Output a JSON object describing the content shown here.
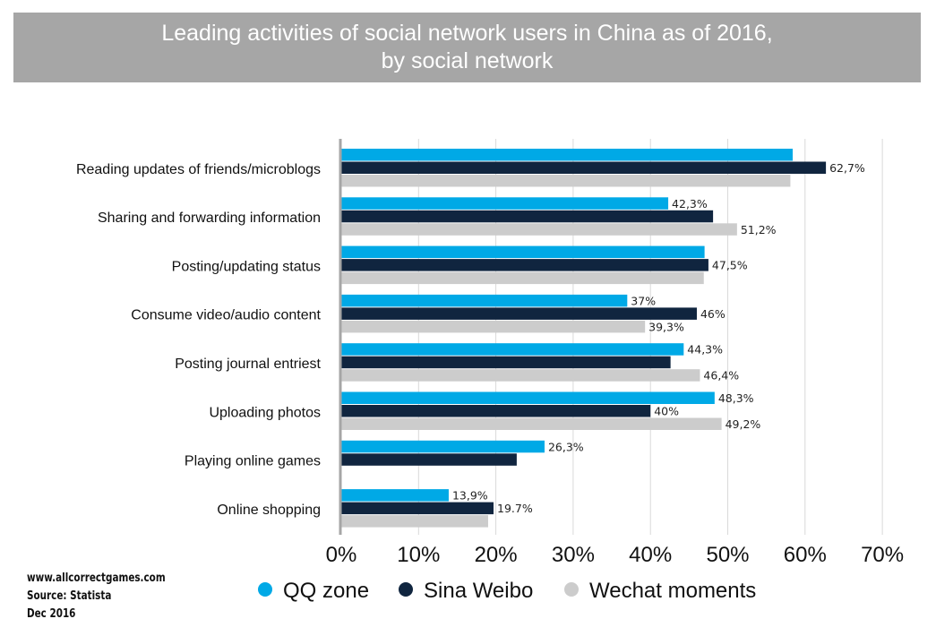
{
  "chart_data": {
    "type": "bar",
    "orientation": "horizontal",
    "title": "Leading activities of social network users in China as of 2016, by social network",
    "categories": [
      "Reading updates of friends/microblogs",
      "Sharing and forwarding information",
      "Posting/updating status",
      "Consume video/audio content",
      "Posting journal entriest",
      "Uploading photos",
      "Playing online games",
      "Online shopping"
    ],
    "series": [
      {
        "name": "QQ zone",
        "color": "#00a9e6",
        "values": [
          58.4,
          42.3,
          47.0,
          37.0,
          44.3,
          48.3,
          26.3,
          13.9
        ],
        "labels": [
          "",
          "42,3%",
          "",
          "37%",
          "44,3%",
          "48,3%",
          "26,3%",
          "13,9%"
        ]
      },
      {
        "name": "Sina Weibo",
        "color": "#10253f",
        "values": [
          62.7,
          48.1,
          47.5,
          46.0,
          42.6,
          40.0,
          22.7,
          19.7
        ],
        "labels": [
          "62,7%",
          "",
          "47,5%",
          "46%",
          "",
          "40%",
          "",
          "19.7%"
        ]
      },
      {
        "name": "Wechat moments",
        "color": "#cccccc",
        "values": [
          58.1,
          51.2,
          46.9,
          39.3,
          46.4,
          49.2,
          null,
          19.0
        ],
        "labels": [
          "",
          "51,2%",
          "",
          "39,3%",
          "46,4%",
          "49,2%",
          "",
          ""
        ]
      }
    ],
    "xlim": [
      0,
      70
    ],
    "x_ticks": [
      "0%",
      "10%",
      "20%",
      "30%",
      "40%",
      "50%",
      "60%",
      "70%"
    ],
    "grid": true,
    "legend_position": "bottom"
  },
  "footer": {
    "line1": "www.allcorrectgames.com",
    "line2": "Source: Statista",
    "line3": "Dec 2016"
  }
}
